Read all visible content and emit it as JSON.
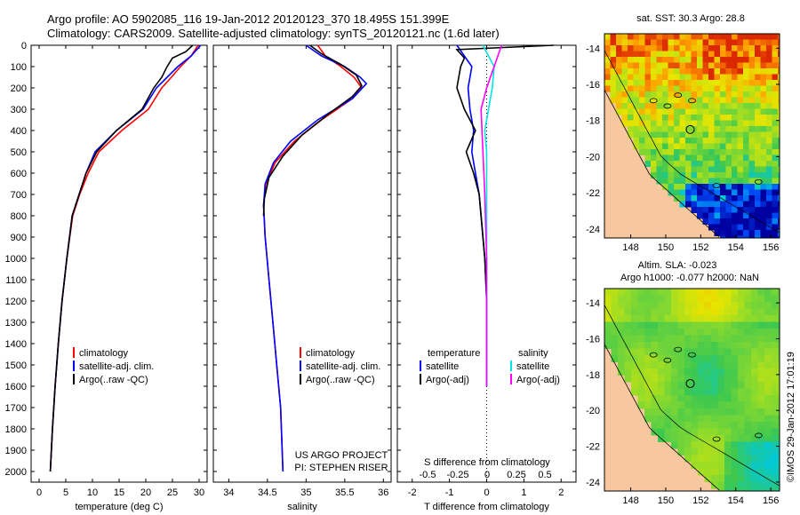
{
  "header": {
    "line1": "Argo profile: AO 5902085_116 19-Jan-2012 20120123_370 18.495S 151.399E",
    "line2": "Climatology: CARS2009. Satellite-adjusted climatology: synTS_20120121.nc (1.6d later)"
  },
  "colors": {
    "climatology": "#ff0000",
    "satellite": "#0000ff",
    "argo": "#000000",
    "sal_satellite": "#00e5e5",
    "sal_argo": "#ff00ff",
    "land": "#f7c8a0"
  },
  "chart_data": [
    {
      "type": "line",
      "name": "temperature-profile",
      "xlabel": "temperature (deg C)",
      "ylabel": "",
      "xlim": [
        -1.5,
        31.5
      ],
      "ylim": [
        0,
        2050
      ],
      "xticks": [
        0,
        5,
        10,
        15,
        20,
        25,
        30
      ],
      "yticks": [
        0,
        100,
        200,
        300,
        400,
        500,
        600,
        700,
        800,
        900,
        1000,
        1100,
        1200,
        1300,
        1400,
        1500,
        1600,
        1700,
        1800,
        1900,
        2000
      ],
      "legend": [
        "climatology",
        "satellite-adj. clim.",
        "Argo(..raw -QC)"
      ],
      "series": [
        {
          "name": "climatology",
          "color": "#ff0000",
          "points": [
            [
              29.8,
              0
            ],
            [
              28.5,
              50
            ],
            [
              26.5,
              100
            ],
            [
              24.8,
              150
            ],
            [
              23,
              200
            ],
            [
              20.5,
              300
            ],
            [
              15.5,
              400
            ],
            [
              11.2,
              500
            ],
            [
              9.2,
              600
            ],
            [
              7.6,
              700
            ],
            [
              6.3,
              800
            ],
            [
              5.2,
              1000
            ],
            [
              4.3,
              1200
            ],
            [
              3.6,
              1400
            ],
            [
              3,
              1600
            ],
            [
              2.5,
              1800
            ],
            [
              2.1,
              2000
            ]
          ]
        },
        {
          "name": "satellite-adj. clim.",
          "color": "#0000ff",
          "points": [
            [
              30.3,
              0
            ],
            [
              28.5,
              50
            ],
            [
              26,
              100
            ],
            [
              24,
              150
            ],
            [
              22,
              200
            ],
            [
              19.5,
              300
            ],
            [
              14.5,
              400
            ],
            [
              10.5,
              500
            ],
            [
              8.8,
              600
            ],
            [
              7.5,
              700
            ],
            [
              6.2,
              800
            ],
            [
              5.2,
              1000
            ],
            [
              4.3,
              1200
            ],
            [
              3.6,
              1400
            ],
            [
              3,
              1600
            ],
            [
              2.5,
              1800
            ],
            [
              2.1,
              2000
            ]
          ]
        },
        {
          "name": "Argo(..raw -QC)",
          "color": "#000000",
          "points": [
            [
              28.8,
              0
            ],
            [
              27.5,
              30
            ],
            [
              25,
              60
            ],
            [
              24,
              100
            ],
            [
              23,
              150
            ],
            [
              21.5,
              200
            ],
            [
              19.3,
              300
            ],
            [
              14.5,
              400
            ],
            [
              10.8,
              500
            ],
            [
              8.8,
              600
            ],
            [
              7.5,
              700
            ],
            [
              6.2,
              800
            ],
            [
              5.2,
              1000
            ],
            [
              4.3,
              1200
            ],
            [
              3.6,
              1400
            ],
            [
              3,
              1600
            ],
            [
              2.5,
              1800
            ],
            [
              2.1,
              2000
            ]
          ]
        }
      ]
    },
    {
      "type": "line",
      "name": "salinity-profile",
      "xlabel": "salinity",
      "ylabel": "",
      "xlim": [
        33.8,
        36.1
      ],
      "ylim": [
        0,
        2050
      ],
      "xticks": [
        34,
        34.5,
        35,
        35.5,
        36
      ],
      "yticks": [
        0,
        100,
        200,
        300,
        400,
        500,
        600,
        700,
        800,
        900,
        1000,
        1100,
        1200,
        1300,
        1400,
        1500,
        1600,
        1700,
        1800,
        1900,
        2000
      ],
      "legend": [
        "climatology",
        "satellite-adj. clim.",
        "Argo(..raw -QC)"
      ],
      "annotation": [
        "US ARGO PROJECT",
        "PI: STEPHEN RISER"
      ],
      "series": [
        {
          "name": "climatology",
          "color": "#ff0000",
          "points": [
            [
              35.15,
              0
            ],
            [
              35.25,
              50
            ],
            [
              35.45,
              100
            ],
            [
              35.62,
              150
            ],
            [
              35.72,
              200
            ],
            [
              35.6,
              250
            ],
            [
              35.2,
              350
            ],
            [
              34.85,
              450
            ],
            [
              34.6,
              550
            ],
            [
              34.48,
              650
            ],
            [
              34.45,
              750
            ],
            [
              34.47,
              900
            ],
            [
              34.52,
              1100
            ],
            [
              34.57,
              1300
            ],
            [
              34.62,
              1500
            ],
            [
              34.67,
              1700
            ],
            [
              34.7,
              2000
            ]
          ]
        },
        {
          "name": "satellite-adj. clim.",
          "color": "#0000ff",
          "points": [
            [
              35,
              0
            ],
            [
              35.2,
              50
            ],
            [
              35.5,
              100
            ],
            [
              35.7,
              150
            ],
            [
              35.78,
              180
            ],
            [
              35.6,
              250
            ],
            [
              35.15,
              350
            ],
            [
              34.8,
              450
            ],
            [
              34.58,
              550
            ],
            [
              34.47,
              650
            ],
            [
              34.45,
              750
            ],
            [
              34.47,
              900
            ],
            [
              34.52,
              1100
            ],
            [
              34.57,
              1300
            ],
            [
              34.62,
              1500
            ],
            [
              34.67,
              1700
            ],
            [
              34.7,
              2000
            ]
          ]
        },
        {
          "name": "Argo(..raw -QC)",
          "color": "#000000",
          "points": [
            [
              35.05,
              0
            ],
            [
              35.2,
              40
            ],
            [
              35.45,
              90
            ],
            [
              35.65,
              140
            ],
            [
              35.72,
              190
            ],
            [
              35.6,
              240
            ],
            [
              35.3,
              320
            ],
            [
              34.95,
              420
            ],
            [
              34.7,
              520
            ],
            [
              34.52,
              620
            ],
            [
              34.46,
              720
            ],
            [
              34.45,
              800
            ]
          ]
        }
      ]
    },
    {
      "type": "line",
      "name": "difference-profile",
      "xlabel": "T difference from climatology",
      "xlabel2": "S difference from climatology",
      "xlim": [
        -2.4,
        2.4
      ],
      "ylim": [
        0,
        2050
      ],
      "xticks": [
        -2,
        -1,
        0,
        1,
        2
      ],
      "sticks": [
        "-0.5",
        "-0.25",
        "0",
        "0.25",
        "0.5"
      ],
      "legend_temperature": [
        "temperature",
        "satellite",
        "Argo(-adj)"
      ],
      "legend_salinity": [
        "salinity",
        "satellite",
        "Argo(-adj)"
      ],
      "series": [
        {
          "name": "temperature satellite",
          "color": "#0000ff",
          "points": [
            [
              -0.8,
              0
            ],
            [
              -0.6,
              50
            ],
            [
              -0.4,
              100
            ],
            [
              -0.5,
              200
            ],
            [
              -0.45,
              300
            ],
            [
              -0.35,
              400
            ],
            [
              -0.4,
              500
            ],
            [
              -0.3,
              600
            ],
            [
              -0.2,
              700
            ],
            [
              -0.15,
              800
            ],
            [
              -0.05,
              1000
            ],
            [
              0,
              1200
            ],
            [
              0,
              1500
            ],
            [
              0,
              1600
            ]
          ]
        },
        {
          "name": "temperature Argo(-adj)",
          "color": "#000000",
          "points": [
            [
              1.8,
              0
            ],
            [
              -0.8,
              20
            ],
            [
              -0.6,
              60
            ],
            [
              -0.7,
              100
            ],
            [
              -0.8,
              200
            ],
            [
              -0.6,
              300
            ],
            [
              -0.3,
              400
            ],
            [
              -0.55,
              500
            ],
            [
              -0.35,
              600
            ],
            [
              -0.2,
              700
            ],
            [
              -0.15,
              800
            ],
            [
              -0.05,
              1000
            ],
            [
              0,
              1200
            ]
          ]
        },
        {
          "name": "salinity satellite",
          "color": "#00e5e5",
          "points": [
            [
              -0.1,
              0
            ],
            [
              0.2,
              100
            ],
            [
              0.15,
              200
            ],
            [
              0.05,
              300
            ],
            [
              -0.05,
              400
            ],
            [
              0,
              500
            ],
            [
              0,
              700
            ],
            [
              0,
              1000
            ],
            [
              0,
              1600
            ]
          ]
        },
        {
          "name": "salinity Argo(-adj)",
          "color": "#ff00ff",
          "points": [
            [
              0.4,
              0
            ],
            [
              0.2,
              100
            ],
            [
              0.0,
              200
            ],
            [
              -0.15,
              300
            ],
            [
              -0.1,
              500
            ],
            [
              -0.05,
              700
            ],
            [
              0,
              1000
            ],
            [
              0,
              1600
            ]
          ]
        }
      ]
    },
    {
      "type": "heatmap",
      "name": "sst-map",
      "title": "sat. SST: 30.3  Argo: 28.8",
      "xticks": [
        "148",
        "150",
        "152",
        "154",
        "156"
      ],
      "yticks": [
        "-14",
        "-16",
        "-18",
        "-20",
        "-22",
        "-24"
      ],
      "xlim": [
        146.5,
        156.5
      ],
      "ylim": [
        -24.5,
        -13.2
      ],
      "argo_position": [
        151.4,
        -18.5
      ]
    },
    {
      "type": "heatmap",
      "name": "sla-map",
      "title": "Altim. SLA: -0.023",
      "subtitle": "Argo h1000: -0.077  h2000: NaN",
      "xticks": [
        "148",
        "150",
        "152",
        "154",
        "156"
      ],
      "yticks": [
        "-14",
        "-16",
        "-18",
        "-20",
        "-22",
        "-24"
      ],
      "xlim": [
        146.5,
        156.5
      ],
      "ylim": [
        -24.5,
        -13.2
      ],
      "argo_position": [
        151.4,
        -18.5
      ]
    }
  ],
  "credit": "©IMOS 29-Jan-2012 17:01:19"
}
